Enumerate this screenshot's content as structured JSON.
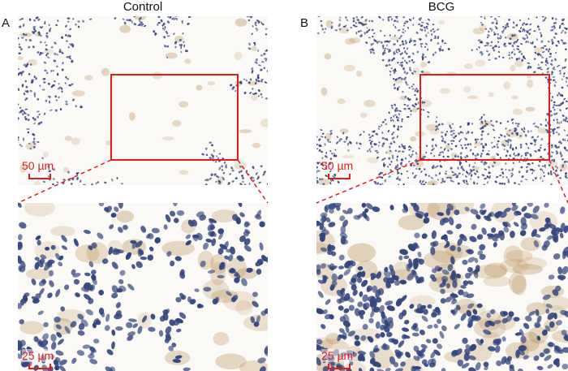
{
  "panels": [
    {
      "letter": "A",
      "title": "Control",
      "scale_top": "50 µm",
      "scale_bottom": "25 µm"
    },
    {
      "letter": "B",
      "title": "BCG",
      "scale_top": "50 µm",
      "scale_bottom": "25 µm"
    }
  ],
  "colors": {
    "highlight": "#e31b1b",
    "nuclei": "#34457e",
    "stain": "#b8905a",
    "background": "#fbf9f5"
  }
}
